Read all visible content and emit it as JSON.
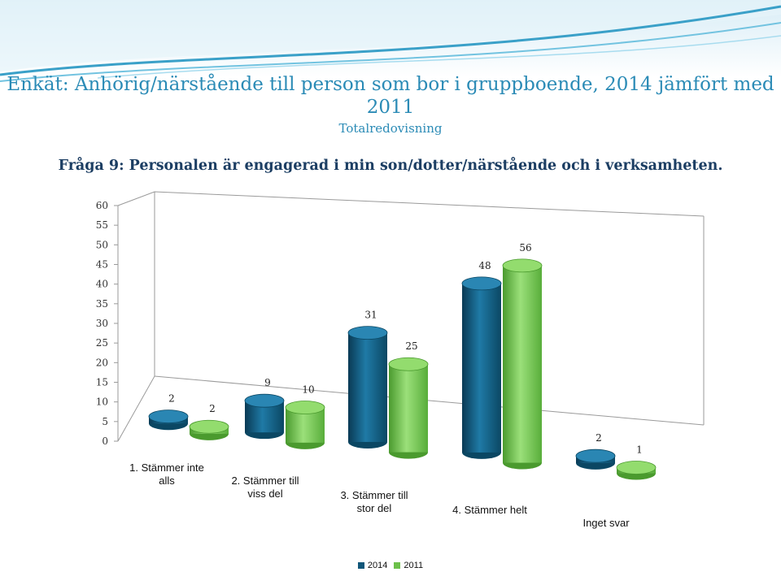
{
  "colors": {
    "series_2014": "#11577a",
    "series_2011": "#6cc04a",
    "title": "#2b8bb6",
    "question": "#1c3e63"
  },
  "header": {
    "title": "Enkät: Anhörig/närstående till person som bor i gruppboende, 2014 jämfört med 2011",
    "subtitle": "Totalredovisning"
  },
  "question": "Fråga 9: Personalen är engagerad i min son/dotter/närstående och i verksamheten.",
  "chart_data": {
    "type": "bar",
    "categories": [
      "1. Stämmer inte alls",
      "2. Stämmer till viss del",
      "3. Stämmer till stor del",
      "4. Stämmer helt",
      "Inget svar"
    ],
    "series": [
      {
        "name": "2014",
        "values": [
          2,
          9,
          31,
          48,
          2
        ]
      },
      {
        "name": "2011",
        "values": [
          2,
          10,
          25,
          56,
          1
        ]
      }
    ],
    "yticks": [
      0,
      5,
      10,
      15,
      20,
      25,
      30,
      35,
      40,
      45,
      50,
      55,
      60
    ],
    "ylim": [
      0,
      60
    ],
    "grid": false,
    "legend": "bottom"
  }
}
